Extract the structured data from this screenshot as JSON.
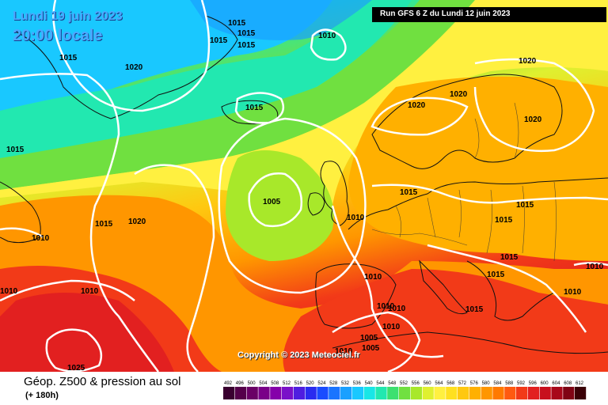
{
  "header": {
    "date": "Lundi 19 juin 2023",
    "time": "20:00 locale",
    "run": "Run GFS 6 Z du Lundi 12 juin 2023"
  },
  "copyright": "Copyright © 2023 Meteociel.fr",
  "legend": {
    "title": "Géop. Z500 & pression au sol",
    "subtitle": "(+ 180h)",
    "scale": [
      {
        "v": "492",
        "c": "#3a0030"
      },
      {
        "v": "496",
        "c": "#55004a"
      },
      {
        "v": "500",
        "c": "#6a0066"
      },
      {
        "v": "504",
        "c": "#7a0088"
      },
      {
        "v": "508",
        "c": "#8500aa"
      },
      {
        "v": "512",
        "c": "#7a10c8"
      },
      {
        "v": "516",
        "c": "#4f1ee0"
      },
      {
        "v": "520",
        "c": "#2a2cf0"
      },
      {
        "v": "524",
        "c": "#1a4cff"
      },
      {
        "v": "528",
        "c": "#1a74ff"
      },
      {
        "v": "532",
        "c": "#1aa0ff"
      },
      {
        "v": "536",
        "c": "#19c8ff"
      },
      {
        "v": "540",
        "c": "#19e6e6"
      },
      {
        "v": "544",
        "c": "#22e8b0"
      },
      {
        "v": "548",
        "c": "#3ce070"
      },
      {
        "v": "552",
        "c": "#70e040"
      },
      {
        "v": "556",
        "c": "#a8e82a"
      },
      {
        "v": "560",
        "c": "#dff030"
      },
      {
        "v": "564",
        "c": "#fff040"
      },
      {
        "v": "568",
        "c": "#ffe020"
      },
      {
        "v": "572",
        "c": "#ffc810"
      },
      {
        "v": "576",
        "c": "#ffb000"
      },
      {
        "v": "580",
        "c": "#ff9600"
      },
      {
        "v": "584",
        "c": "#ff7a00"
      },
      {
        "v": "588",
        "c": "#ff5a10"
      },
      {
        "v": "592",
        "c": "#f23a18"
      },
      {
        "v": "596",
        "c": "#e22020"
      },
      {
        "v": "600",
        "c": "#c8101e"
      },
      {
        "v": "604",
        "c": "#a8081a"
      },
      {
        "v": "608",
        "c": "#800414"
      },
      {
        "v": "612",
        "c": "#3a0006"
      }
    ]
  },
  "pressure_labels": [
    {
      "t": "1015"
    },
    {
      "t": "1015"
    },
    {
      "t": "1015"
    },
    {
      "t": "1015"
    },
    {
      "t": "1015"
    },
    {
      "t": "1010"
    },
    {
      "t": "1015"
    },
    {
      "t": "1020"
    },
    {
      "t": "1015"
    },
    {
      "t": "1005"
    },
    {
      "t": "1020"
    },
    {
      "t": "1015"
    },
    {
      "t": "1010"
    },
    {
      "t": "1010"
    },
    {
      "t": "1010"
    },
    {
      "t": "1020"
    },
    {
      "t": "1020"
    },
    {
      "t": "1020"
    },
    {
      "t": "1020"
    },
    {
      "t": "1015"
    },
    {
      "t": "1010"
    },
    {
      "t": "1015"
    },
    {
      "t": "1015"
    },
    {
      "t": "1015"
    },
    {
      "t": "1015"
    },
    {
      "t": "1010"
    },
    {
      "t": "1010"
    },
    {
      "t": "1010"
    },
    {
      "t": "1010"
    },
    {
      "t": "1005"
    },
    {
      "t": "1005"
    },
    {
      "t": "1010"
    },
    {
      "t": "1025"
    },
    {
      "t": "1015"
    },
    {
      "t": "1010"
    },
    {
      "t": "1010"
    }
  ]
}
